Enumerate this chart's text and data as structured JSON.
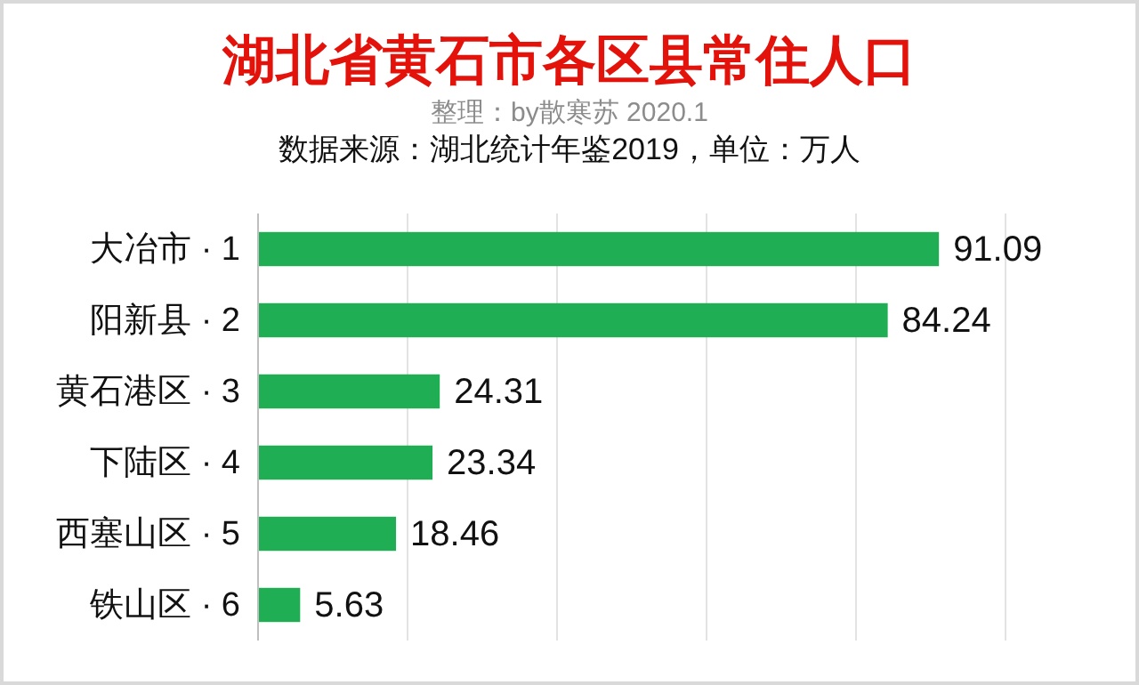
{
  "chart_data": {
    "type": "bar",
    "orientation": "horizontal",
    "title": "湖北省黄石市各区县常住人口",
    "subtitle": "整理：by散寒苏  2020.1",
    "annotations": [
      "数据来源：湖北统计年鉴2019，单位：万人"
    ],
    "categories": [
      "大冶市 · 1",
      "阳新县 · 2",
      "黄石港区 · 3",
      "下陆区 · 4",
      "西塞山区 · 5",
      "铁山区 · 6"
    ],
    "values": [
      91.09,
      84.24,
      24.31,
      23.34,
      18.46,
      5.63
    ],
    "color": "#1fae53",
    "xlim": [
      0,
      100
    ],
    "xticks": [
      {
        "value": 0,
        "label": null
      },
      {
        "value": 20,
        "label": null
      },
      {
        "value": 40,
        "label": null
      },
      {
        "value": 60,
        "label": null
      },
      {
        "value": 80,
        "label": null
      },
      {
        "value": 100,
        "label": null
      }
    ],
    "grid": "x",
    "data_labels": true,
    "tick_labels": "y"
  }
}
